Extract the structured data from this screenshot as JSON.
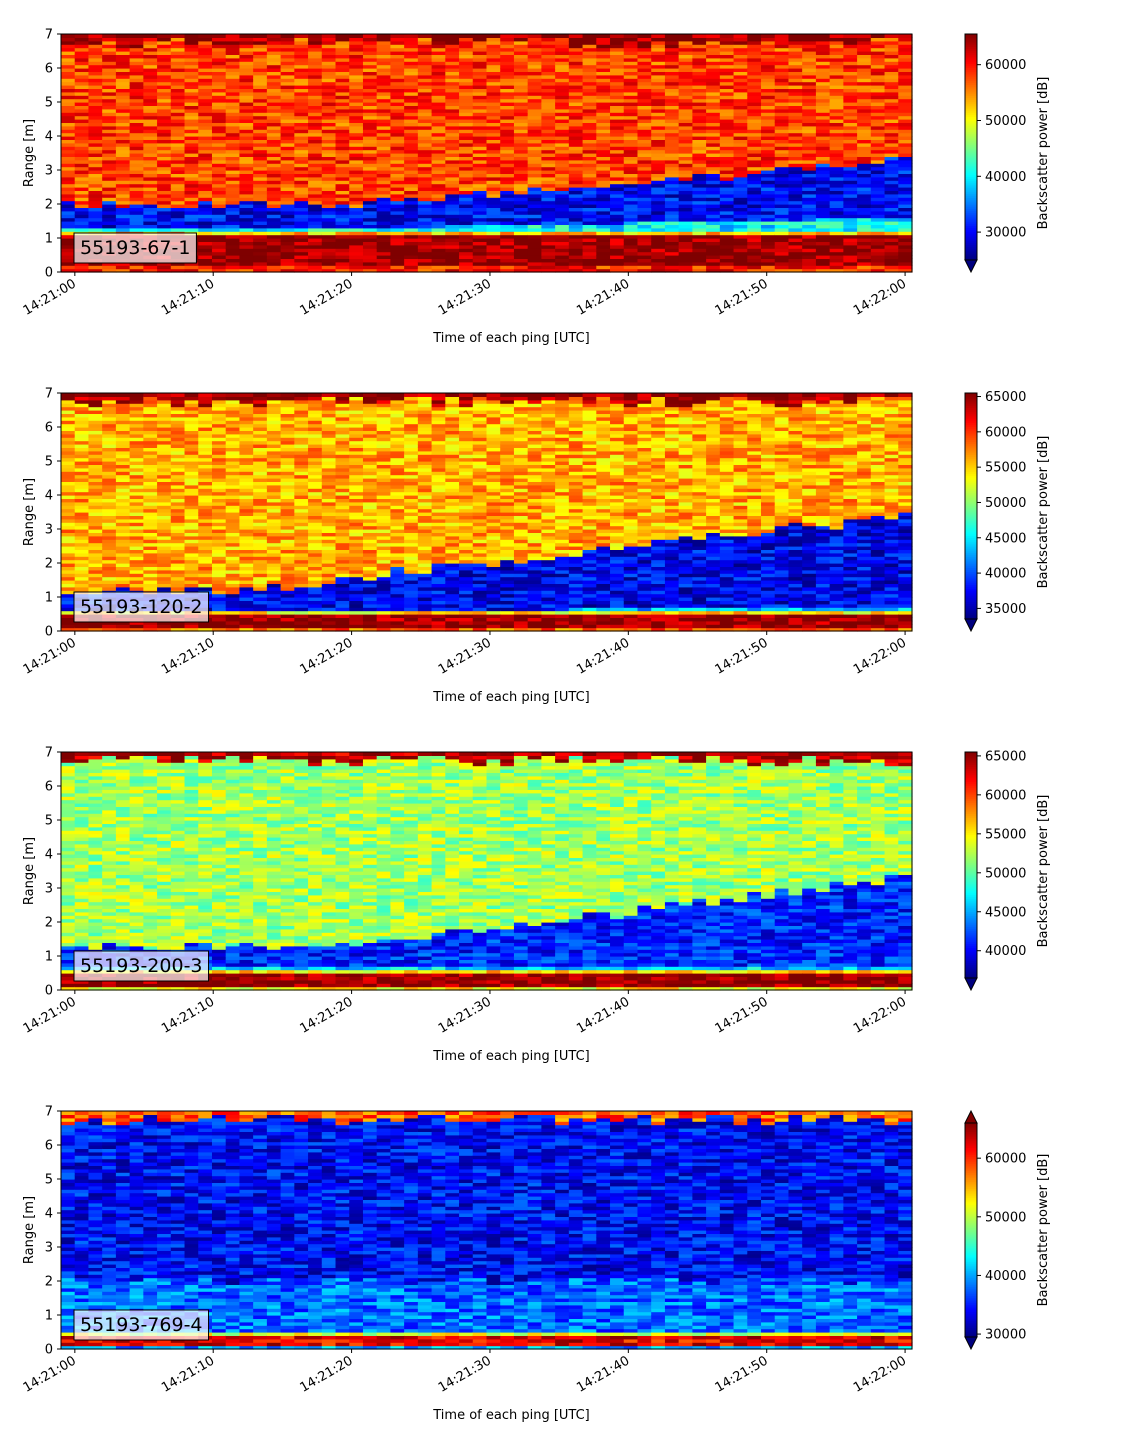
{
  "colors": {
    "colormap": [
      "#00007f",
      "#0000ff",
      "#007fff",
      "#00ffff",
      "#7fff7f",
      "#ffff00",
      "#ff7f00",
      "#ff0000",
      "#7f0000"
    ],
    "label_box_fill": "#ffffff"
  },
  "chart_data": [
    {
      "type": "heatmap",
      "label": "55193-67-1",
      "xlabel": "Time of each ping [UTC]",
      "ylabel": "Range [m]",
      "colorbar_label": "Backscatter power [dB]",
      "xlim": [
        "14:21:00",
        "14:22:00"
      ],
      "xticks": [
        "14:21:00",
        "14:21:10",
        "14:21:20",
        "14:21:30",
        "14:21:40",
        "14:21:50",
        "14:22:00"
      ],
      "ylim": [
        0,
        7
      ],
      "yticks": [
        0,
        1,
        2,
        3,
        4,
        5,
        6,
        7
      ],
      "clim": [
        25000,
        65500
      ],
      "cbar_ticks": [
        30000,
        40000,
        50000,
        60000
      ],
      "cbar_tick_labels": [
        "30000",
        "40000",
        "50000",
        "60000"
      ],
      "cbar_extend": "min",
      "profile": {
        "bottom_band": {
          "range": [
            0.2,
            1.1
          ],
          "value": 65000
        },
        "layer_start_time": 20,
        "layer_start_level": [
          1.3,
          2.0
        ],
        "layer_end_level": [
          1.6,
          3.3
        ],
        "layer_value": 30000,
        "below_layer_value": 40000,
        "upper_value": 58000,
        "surface_value": 65000,
        "noise": 4500
      }
    },
    {
      "type": "heatmap",
      "label": "55193-120-2",
      "xlabel": "Time of each ping [UTC]",
      "ylabel": "Range [m]",
      "colorbar_label": "Backscatter power [dB]",
      "xlim": [
        "14:21:00",
        "14:22:00"
      ],
      "xticks": [
        "14:21:00",
        "14:21:10",
        "14:21:20",
        "14:21:30",
        "14:21:40",
        "14:21:50",
        "14:22:00"
      ],
      "ylim": [
        0,
        7
      ],
      "yticks": [
        0,
        1,
        2,
        3,
        4,
        5,
        6,
        7
      ],
      "clim": [
        33500,
        65500
      ],
      "cbar_ticks": [
        35000,
        40000,
        45000,
        50000,
        55000,
        60000,
        65000
      ],
      "cbar_tick_labels": [
        "35000",
        "40000",
        "45000",
        "50000",
        "55000",
        "60000",
        "65000"
      ],
      "cbar_extend": "min",
      "profile": {
        "bottom_band": {
          "range": [
            0.1,
            0.5
          ],
          "value": 65000
        },
        "layer_start_time": 12,
        "layer_start_level": [
          0.6,
          1.2
        ],
        "layer_end_level": [
          0.7,
          3.4
        ],
        "layer_value": 37000,
        "below_layer_value": 43000,
        "upper_value": 56000,
        "surface_value": 65000,
        "noise": 3500
      }
    },
    {
      "type": "heatmap",
      "label": "55193-200-3",
      "xlabel": "Time of each ping [UTC]",
      "ylabel": "Range [m]",
      "colorbar_label": "Backscatter power [dB]",
      "xlim": [
        "14:21:00",
        "14:22:00"
      ],
      "xticks": [
        "14:21:00",
        "14:21:10",
        "14:21:20",
        "14:21:30",
        "14:21:40",
        "14:21:50",
        "14:22:00"
      ],
      "ylim": [
        0,
        7
      ],
      "yticks": [
        0,
        1,
        2,
        3,
        4,
        5,
        6,
        7
      ],
      "clim": [
        36500,
        65500
      ],
      "cbar_ticks": [
        40000,
        45000,
        50000,
        55000,
        60000,
        65000
      ],
      "cbar_tick_labels": [
        "40000",
        "45000",
        "50000",
        "55000",
        "60000",
        "65000"
      ],
      "cbar_extend": "min",
      "profile": {
        "bottom_band": {
          "range": [
            0.1,
            0.5
          ],
          "value": 65000
        },
        "layer_start_time": 19,
        "layer_start_level": [
          0.7,
          1.3
        ],
        "layer_end_level": [
          0.7,
          3.3
        ],
        "layer_value": 41000,
        "below_layer_value": 46000,
        "upper_value": 52000,
        "surface_value": 64000,
        "noise": 3000
      }
    },
    {
      "type": "heatmap",
      "label": "55193-769-4",
      "xlabel": "Time of each ping [UTC]",
      "ylabel": "Range [m]",
      "colorbar_label": "Backscatter power [dB]",
      "xlim": [
        "14:21:00",
        "14:22:00"
      ],
      "xticks": [
        "14:21:00",
        "14:21:10",
        "14:21:20",
        "14:21:30",
        "14:21:40",
        "14:21:50",
        "14:22:00"
      ],
      "ylim": [
        0,
        7
      ],
      "yticks": [
        0,
        1,
        2,
        3,
        4,
        5,
        6,
        7
      ],
      "clim": [
        29500,
        66000
      ],
      "cbar_ticks": [
        30000,
        40000,
        50000,
        60000
      ],
      "cbar_tick_labels": [
        "30000",
        "40000",
        "50000",
        "60000"
      ],
      "cbar_extend": "both",
      "profile": {
        "bottom_band": {
          "range": [
            0.15,
            0.35
          ],
          "value": 62000
        },
        "layer_start_time": 0,
        "layer_start_level": [
          0.5,
          2.0
        ],
        "layer_end_level": [
          0.5,
          2.0
        ],
        "layer_value": 38000,
        "below_layer_value": 40000,
        "upper_value": 34000,
        "surface_value": 58000,
        "noise": 4000
      }
    }
  ]
}
